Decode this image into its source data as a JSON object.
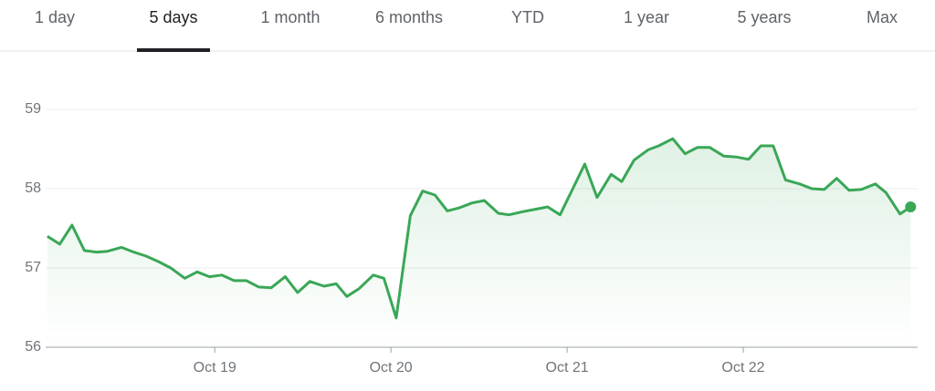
{
  "tabs": {
    "items": [
      "1 day",
      "5 days",
      "1 month",
      "6 months",
      "YTD",
      "1 year",
      "5 years",
      "Max"
    ],
    "selected": 1
  },
  "chart_data": {
    "type": "line",
    "color": "#3aa757",
    "grid": true,
    "area": true,
    "x": [
      18.05,
      18.12,
      18.19,
      18.26,
      18.33,
      18.39,
      18.47,
      18.54,
      18.61,
      18.68,
      18.75,
      18.83,
      18.9,
      18.97,
      19.04,
      19.11,
      19.18,
      19.25,
      19.32,
      19.4,
      19.47,
      19.54,
      19.62,
      19.69,
      19.75,
      19.82,
      19.9,
      19.96,
      20.03,
      20.11,
      20.18,
      20.25,
      20.32,
      20.39,
      20.46,
      20.53,
      20.61,
      20.67,
      20.75,
      20.82,
      20.89,
      20.96,
      21.03,
      21.1,
      21.17,
      21.25,
      21.31,
      21.38,
      21.46,
      21.52,
      21.6,
      21.67,
      21.74,
      21.81,
      21.89,
      21.96,
      22.03,
      22.1,
      22.17,
      22.24,
      22.32,
      22.39,
      22.46,
      22.53,
      22.6,
      22.67,
      22.75,
      22.81,
      22.89,
      22.95
    ],
    "values": [
      57.4,
      57.3,
      57.54,
      57.22,
      57.2,
      57.21,
      57.26,
      57.2,
      57.15,
      57.08,
      57.0,
      56.87,
      56.95,
      56.89,
      56.91,
      56.84,
      56.84,
      56.76,
      56.75,
      56.89,
      56.69,
      56.83,
      56.77,
      56.8,
      56.64,
      56.74,
      56.91,
      56.87,
      56.37,
      57.66,
      57.97,
      57.92,
      57.72,
      57.76,
      57.82,
      57.85,
      57.69,
      57.67,
      57.71,
      57.74,
      57.77,
      57.67,
      57.99,
      58.31,
      57.89,
      58.18,
      58.09,
      58.36,
      58.49,
      58.54,
      58.63,
      58.44,
      58.52,
      58.52,
      58.41,
      58.4,
      58.37,
      58.54,
      58.54,
      58.11,
      58.06,
      58.0,
      57.99,
      58.13,
      57.98,
      57.99,
      58.06,
      57.95,
      57.68,
      57.77
    ],
    "xlim": [
      18.04,
      22.99
    ],
    "xticks": [
      {
        "value": 19,
        "label": "Oct 19"
      },
      {
        "value": 20,
        "label": "Oct 20"
      },
      {
        "value": 21,
        "label": "Oct 21"
      },
      {
        "value": 22,
        "label": "Oct 22"
      }
    ],
    "ylim": [
      56,
      59.3
    ],
    "yticks": [
      56,
      57,
      58,
      59
    ]
  }
}
